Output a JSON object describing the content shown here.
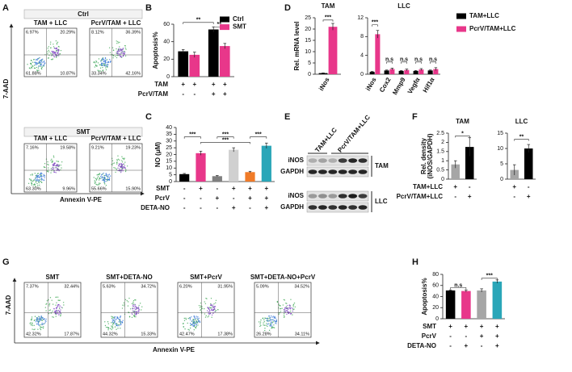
{
  "figure": {
    "panel_letters": [
      "A",
      "B",
      "C",
      "D",
      "E",
      "F",
      "G",
      "H"
    ],
    "flow_a": {
      "y_axis": "7-AAD",
      "x_axis": "Annexin V-PE",
      "groups": [
        {
          "title": "Ctrl",
          "plots": [
            {
              "title": "TAM + LLC",
              "quadrants": [
                "6.97%",
                "20.29%",
                "61.88%",
                "10.87%"
              ]
            },
            {
              "title": "PcrV/TAM + LLC",
              "quadrants": [
                "8.12%",
                "36.39%",
                "33.34%",
                "42.16%"
              ]
            }
          ]
        },
        {
          "title": "SMT",
          "plots": [
            {
              "title": "TAM + LLC",
              "quadrants": [
                "7.16%",
                "19.58%",
                "63.30%",
                "9.96%"
              ]
            },
            {
              "title": "PcrV/TAM + LLC",
              "quadrants": [
                "9.21%",
                "19.23%",
                "55.66%",
                "15.90%"
              ]
            }
          ]
        }
      ]
    },
    "flow_g": {
      "y_axis": "7-AAD",
      "x_axis": "Annexin V-PE",
      "plots": [
        {
          "title": "SMT",
          "quadrants": [
            "7.37%",
            "32.44%",
            "42.32%",
            "17.87%"
          ]
        },
        {
          "title": "SMT+DETA-NO",
          "quadrants": [
            "5.63%",
            "34.72%",
            "44.32%",
            "15.33%"
          ]
        },
        {
          "title": "SMT+PcrV",
          "quadrants": [
            "6.20%",
            "31.95%",
            "42.47%",
            "17.38%"
          ]
        },
        {
          "title": "SMT+DETA-NO+PcrV",
          "quadrants": [
            "5.09%",
            "34.52%",
            "26.28%",
            "34.11%"
          ]
        }
      ]
    },
    "blot_e": {
      "columns": [
        "TAM+LLC",
        "PcrV/TAM+LLC"
      ],
      "rows": [
        "iNOS",
        "GAPDH",
        "iNOS",
        "GAPDH"
      ],
      "groups": [
        "TAM",
        "LLC"
      ]
    }
  },
  "chart_data": [
    {
      "type": "bar",
      "ylabel": "Apoptosis%",
      "ylim": [
        0,
        60
      ],
      "yticks": [
        0,
        20,
        40,
        60
      ],
      "legend": "upper right",
      "series": [
        {
          "name": "Ctrl",
          "color": "#000000",
          "values": [
            29,
            54
          ],
          "errors": [
            2,
            3
          ]
        },
        {
          "name": "SMT",
          "color": "#e8378a",
          "values": [
            25,
            35
          ],
          "errors": [
            3,
            3
          ]
        }
      ],
      "conditions": [
        {
          "label": "TAM",
          "marks": [
            "+",
            "+",
            "+",
            "+"
          ]
        },
        {
          "label": "PcrV/TAM",
          "marks": [
            "-",
            "-",
            "+",
            "+"
          ]
        }
      ],
      "significance": [
        "**",
        "**"
      ]
    },
    {
      "type": "bar",
      "ylabel": "NO (μM)",
      "ylim": [
        0,
        40
      ],
      "yticks": [
        0,
        5,
        10,
        15,
        20,
        25,
        30,
        35,
        40
      ],
      "values": [
        5.5,
        21,
        4,
        23.5,
        7,
        26.5
      ],
      "errors": [
        0.5,
        1.5,
        0.5,
        1.5,
        0.6,
        2
      ],
      "colors": [
        "#000000",
        "#e8378a",
        "#7f7f7f",
        "#d0d0d0",
        "#f07b28",
        "#2aa6b8"
      ],
      "conditions": [
        {
          "label": "SMT",
          "marks": [
            "-",
            "+",
            "-",
            "+",
            "+",
            "+"
          ]
        },
        {
          "label": "PcrV",
          "marks": [
            "-",
            "-",
            "+",
            "-",
            "+",
            "+"
          ]
        },
        {
          "label": "DETA-NO",
          "marks": [
            "-",
            "-",
            "-",
            "+",
            "-",
            "+"
          ]
        }
      ],
      "significance": [
        "***",
        "***",
        "***",
        "***"
      ]
    },
    {
      "type": "bar",
      "title": "TAM",
      "ylabel": "Rel. mRNA level",
      "ylim": [
        0,
        25
      ],
      "yticks": [
        0,
        5,
        10,
        15,
        20,
        25
      ],
      "legend": "right",
      "categories": [
        "iNos"
      ],
      "series": [
        {
          "name": "TAM+LLC",
          "color": "#000000",
          "values": [
            0.5
          ],
          "errors": [
            0.1
          ]
        },
        {
          "name": "PcrV/TAM+LLC",
          "color": "#e8378a",
          "values": [
            21
          ],
          "errors": [
            1.5
          ]
        }
      ],
      "significance": [
        "***"
      ]
    },
    {
      "type": "bar",
      "title": "LLC",
      "ylim": [
        0,
        12
      ],
      "yticks": [
        0,
        4,
        8,
        12
      ],
      "categories": [
        "iNos",
        "Cox2",
        "Mmp9",
        "Vegfα",
        "Hif1α"
      ],
      "series": [
        {
          "color": "#000000",
          "values": [
            0.5,
            0.8,
            0.7,
            0.7,
            0.8
          ],
          "errors": [
            0.1,
            0.1,
            0.1,
            0.1,
            0.1
          ]
        },
        {
          "color": "#e8378a",
          "values": [
            8.5,
            1.1,
            0.9,
            1.0,
            1.1
          ],
          "errors": [
            0.8,
            0.2,
            0.2,
            0.2,
            0.3
          ]
        }
      ],
      "significance": [
        "***",
        "n.s",
        "n.s",
        "n.s",
        "n.s"
      ]
    },
    {
      "type": "bar",
      "title": "TAM",
      "ylabel": [
        "Rel. density",
        "(iNOS/GAPDH)"
      ],
      "ylim": [
        0,
        2.5
      ],
      "yticks": [
        0,
        0.5,
        1,
        1.5,
        2,
        2.5
      ],
      "values": [
        0.8,
        1.75
      ],
      "errors": [
        0.2,
        0.5
      ],
      "colors": [
        "#a6a6a6",
        "#000000"
      ],
      "conditions": [
        {
          "label": "TAM+LLC",
          "marks": [
            "+",
            "-"
          ]
        },
        {
          "label": "PcrV/TAM+LLC",
          "marks": [
            "-",
            "+"
          ]
        }
      ],
      "significance": [
        "*"
      ]
    },
    {
      "type": "bar",
      "title": "LLC",
      "ylim": [
        0,
        15
      ],
      "yticks": [
        0,
        5,
        10,
        15
      ],
      "values": [
        3,
        10
      ],
      "errors": [
        1.7,
        1.3
      ],
      "colors": [
        "#a6a6a6",
        "#000000"
      ],
      "conditions": [
        {
          "marks": [
            "+",
            "-"
          ]
        },
        {
          "marks": [
            "-",
            "+"
          ]
        }
      ],
      "significance": [
        "**"
      ]
    },
    {
      "type": "bar",
      "ylabel": "Apoptosis%",
      "ylim": [
        0,
        80
      ],
      "yticks": [
        0,
        20,
        40,
        60,
        80
      ],
      "values": [
        51,
        50,
        51,
        67
      ],
      "errors": [
        1,
        2,
        3,
        3
      ],
      "colors": [
        "#000000",
        "#e8378a",
        "#a6a6a6",
        "#2aa6b8"
      ],
      "conditions": [
        {
          "label": "SMT",
          "marks": [
            "+",
            "+",
            "+",
            "+"
          ]
        },
        {
          "label": "PcrV",
          "marks": [
            "-",
            "-",
            "+",
            "+"
          ]
        },
        {
          "label": "DETA-NO",
          "marks": [
            "-",
            "+",
            "-",
            "+"
          ]
        }
      ],
      "significance": [
        "n.s",
        "***"
      ]
    }
  ]
}
